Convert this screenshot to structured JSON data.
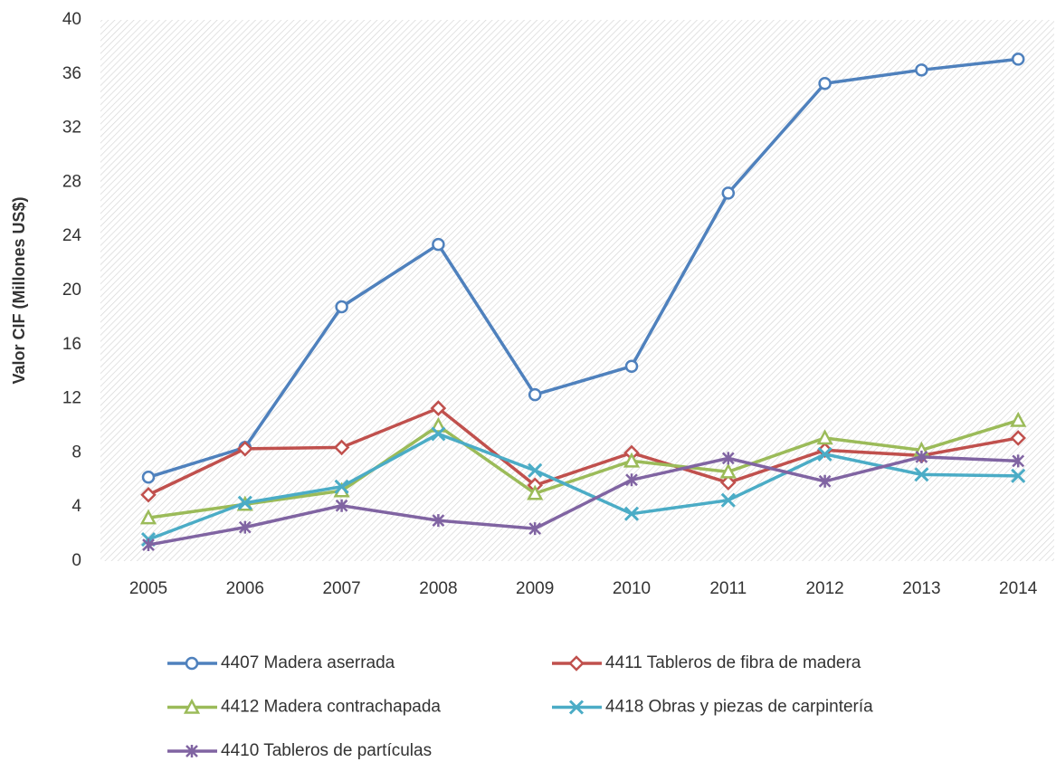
{
  "chart_data": {
    "type": "line",
    "y_label": "Valor CIF (Millones US$)",
    "categories": [
      "2005",
      "2006",
      "2007",
      "2008",
      "2009",
      "2010",
      "2011",
      "2012",
      "2013",
      "2014"
    ],
    "series": [
      {
        "name": "4407 Madera aserrada",
        "color": "#4f81bd",
        "marker": "circle",
        "values": [
          6.2,
          8.4,
          18.8,
          23.4,
          12.3,
          14.4,
          27.2,
          35.3,
          36.3,
          37.1
        ]
      },
      {
        "name": "4411 Tableros de fibra de madera",
        "color": "#c0504d",
        "marker": "diamond",
        "values": [
          4.9,
          8.3,
          8.4,
          11.3,
          5.6,
          8.0,
          5.8,
          8.2,
          7.8,
          9.1
        ]
      },
      {
        "name": "4412 Madera contrachapada",
        "color": "#9bbb59",
        "marker": "triangle",
        "values": [
          3.2,
          4.2,
          5.2,
          10.0,
          5.0,
          7.4,
          6.6,
          9.1,
          8.2,
          10.4
        ]
      },
      {
        "name": "4418 Obras y piezas de carpintería",
        "color": "#4bacc6",
        "marker": "x",
        "values": [
          1.6,
          4.3,
          5.5,
          9.4,
          6.7,
          3.5,
          4.5,
          7.9,
          6.4,
          6.3
        ]
      },
      {
        "name": "4410 Tableros de partículas",
        "color": "#8064a2",
        "marker": "star",
        "values": [
          1.2,
          2.5,
          4.1,
          3.0,
          2.4,
          6.0,
          7.6,
          5.9,
          7.7,
          7.4
        ]
      }
    ],
    "ylim": [
      0,
      40
    ],
    "yticks": [
      0,
      4,
      8,
      12,
      16,
      20,
      24,
      28,
      32,
      36,
      40
    ],
    "grid": false,
    "legend": "bottom"
  }
}
